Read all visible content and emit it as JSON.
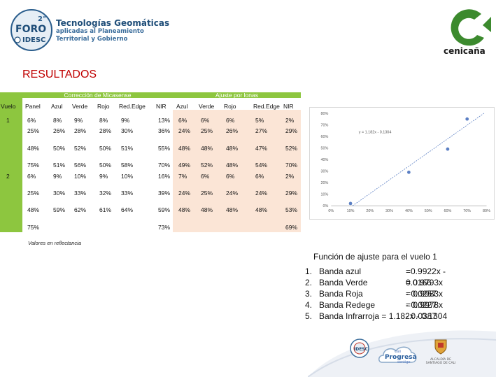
{
  "header": {
    "foro_logo_text": "FORO",
    "foro_badge": "2°",
    "idesc_text": "IDESC",
    "title_line1": "Tecnologías Geomáticas",
    "title_line2": "aplicadas al Planeamiento",
    "title_line3": "Territorial y Gobierno",
    "cenicana_text": "cenicaña"
  },
  "section_title": "RESULTADOS",
  "table": {
    "group1": "Corrección de Micasense",
    "group2": "Ajuste por lonas",
    "columns": [
      "Vuelo",
      "Panel",
      "Azul",
      "Verde",
      "Rojo",
      "Red.Edge",
      "NIR",
      "Azul",
      "Verde",
      "Rojo",
      "Red.Edge",
      "NIR"
    ],
    "vuelos": [
      "1",
      "2"
    ],
    "rows": [
      [
        "6%",
        "8%",
        "9%",
        "8%",
        "9%",
        "13%",
        "6%",
        "6%",
        "6%",
        "5%",
        "2%"
      ],
      [
        "25%",
        "26%",
        "28%",
        "28%",
        "30%",
        "36%",
        "24%",
        "25%",
        "26%",
        "27%",
        "29%"
      ],
      [
        "48%",
        "50%",
        "52%",
        "50%",
        "51%",
        "55%",
        "48%",
        "48%",
        "48%",
        "47%",
        "52%"
      ],
      [
        "75%",
        "51%",
        "56%",
        "50%",
        "58%",
        "70%",
        "49%",
        "52%",
        "48%",
        "54%",
        "70%"
      ],
      [
        "6%",
        "9%",
        "10%",
        "9%",
        "10%",
        "16%",
        "7%",
        "6%",
        "6%",
        "6%",
        "2%"
      ],
      [
        "25%",
        "30%",
        "33%",
        "32%",
        "33%",
        "39%",
        "24%",
        "25%",
        "24%",
        "24%",
        "29%"
      ],
      [
        "48%",
        "59%",
        "62%",
        "61%",
        "64%",
        "59%",
        "48%",
        "48%",
        "48%",
        "48%",
        "53%"
      ],
      [
        "75%",
        "",
        "",
        "",
        "",
        "73%",
        "",
        "",
        "",
        "",
        "69%"
      ]
    ],
    "note": "Valores en reflectancia"
  },
  "chart_data": {
    "type": "scatter",
    "equation_label": "y = 1.182x - 0.1304",
    "x": [
      0.1,
      0.4,
      0.6,
      0.7
    ],
    "y": [
      0.02,
      0.29,
      0.49,
      0.75
    ],
    "trend": {
      "slope": 1.182,
      "intercept": -0.1304
    },
    "xlim": [
      0,
      0.8
    ],
    "ylim": [
      0,
      0.8
    ],
    "xticks": [
      "0%",
      "10%",
      "20%",
      "30%",
      "40%",
      "50%",
      "60%",
      "70%",
      "80%"
    ],
    "yticks": [
      "0%",
      "10%",
      "20%",
      "30%",
      "40%",
      "50%",
      "60%",
      "70%",
      "80%"
    ],
    "grid": false,
    "point_color": "#5b7fc4",
    "trend_color": "#5b7fc4"
  },
  "functions": {
    "heading": "Función  de ajuste para el vuelo 1",
    "items": [
      {
        "num": "1.",
        "label": "Banda azul",
        "eq": "=0.9922x - 0.0166"
      },
      {
        "num": "2.",
        "label": "Banda Verde",
        "eq": "= 0.9793x - 0.0257"
      },
      {
        "num": "3.",
        "label": "Banda Roja",
        "eq": "= 0.9983x - 0.0227"
      },
      {
        "num": "4.",
        "label": "Banda Redege",
        "eq": " = 0.9978x - 0.0387"
      },
      {
        "num": "5.",
        "label": "Banda Infrarroja = 1.182x - 0.1304",
        "eq": ""
      }
    ]
  },
  "footer_logos": {
    "idesc": "IDESC",
    "cali_top": "Cali",
    "cali_mid": "Progresa",
    "cali_bottom": "contigo",
    "alcaldia": "ALCALDÍA DE SANTIAGO DE CALI"
  },
  "colors": {
    "accent_green": "#8dc63f",
    "peach": "#fbe5d6",
    "title_red": "#c00000",
    "foro_blue": "#1f4e79"
  }
}
